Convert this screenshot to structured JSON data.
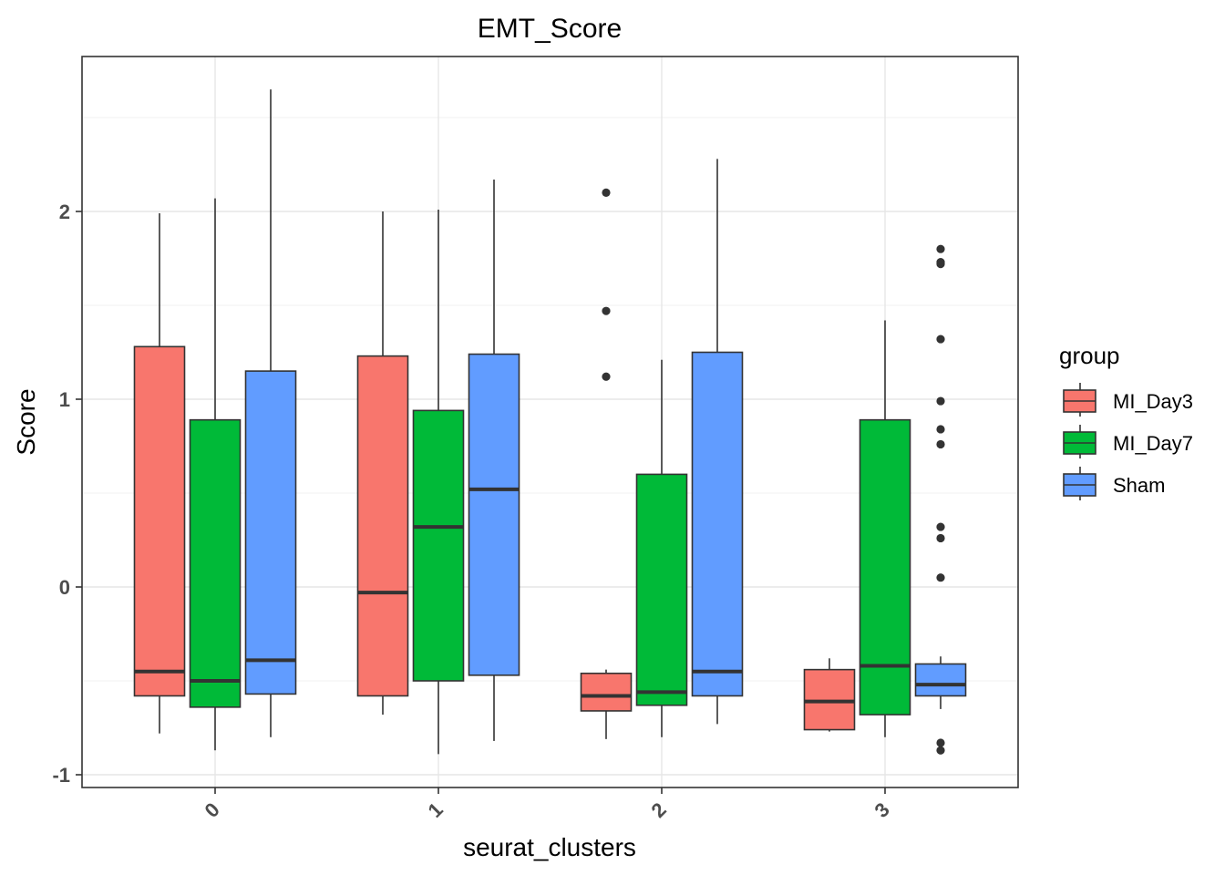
{
  "chart_data": {
    "type": "boxplot",
    "title": "EMT_Score",
    "xlabel": "seurat_clusters",
    "ylabel": "Score",
    "categories": [
      "0",
      "1",
      "2",
      "3"
    ],
    "ylim": [
      -1.05,
      2.75
    ],
    "yticks": [
      -1,
      0,
      1,
      2
    ],
    "grid": true,
    "legend": {
      "title": "group",
      "position": "right"
    },
    "series": [
      {
        "name": "MI_Day3",
        "color": "#F8766D",
        "boxes": [
          {
            "whisker_low": -0.78,
            "q1": -0.58,
            "median": -0.45,
            "q3": 1.28,
            "whisker_high": 1.99,
            "outliers": []
          },
          {
            "whisker_low": -0.68,
            "q1": -0.58,
            "median": -0.03,
            "q3": 1.23,
            "whisker_high": 2.0,
            "outliers": []
          },
          {
            "whisker_low": -0.81,
            "q1": -0.66,
            "median": -0.58,
            "q3": -0.46,
            "whisker_high": -0.44,
            "outliers": [
              1.12,
              1.47,
              2.1
            ]
          },
          {
            "whisker_low": -0.77,
            "q1": -0.76,
            "median": -0.61,
            "q3": -0.44,
            "whisker_high": -0.38,
            "outliers": []
          }
        ]
      },
      {
        "name": "MI_Day7",
        "color": "#00BA38",
        "boxes": [
          {
            "whisker_low": -0.87,
            "q1": -0.64,
            "median": -0.5,
            "q3": 0.89,
            "whisker_high": 2.07,
            "outliers": []
          },
          {
            "whisker_low": -0.89,
            "q1": -0.5,
            "median": 0.32,
            "q3": 0.94,
            "whisker_high": 2.01,
            "outliers": []
          },
          {
            "whisker_low": -0.8,
            "q1": -0.63,
            "median": -0.56,
            "q3": 0.6,
            "whisker_high": 1.21,
            "outliers": []
          },
          {
            "whisker_low": -0.8,
            "q1": -0.68,
            "median": -0.42,
            "q3": 0.89,
            "whisker_high": 1.42,
            "outliers": []
          }
        ]
      },
      {
        "name": "Sham",
        "color": "#619CFF",
        "boxes": [
          {
            "whisker_low": -0.8,
            "q1": -0.57,
            "median": -0.39,
            "q3": 1.15,
            "whisker_high": 2.65,
            "outliers": []
          },
          {
            "whisker_low": -0.82,
            "q1": -0.47,
            "median": 0.52,
            "q3": 1.24,
            "whisker_high": 2.17,
            "outliers": []
          },
          {
            "whisker_low": -0.73,
            "q1": -0.58,
            "median": -0.45,
            "q3": 1.25,
            "whisker_high": 2.28,
            "outliers": []
          },
          {
            "whisker_low": -0.65,
            "q1": -0.58,
            "median": -0.52,
            "q3": -0.41,
            "whisker_high": -0.37,
            "outliers": [
              -0.87,
              -0.83,
              0.05,
              0.26,
              0.32,
              0.76,
              0.84,
              0.99,
              1.32,
              1.72,
              1.73,
              1.8
            ]
          }
        ]
      }
    ]
  }
}
